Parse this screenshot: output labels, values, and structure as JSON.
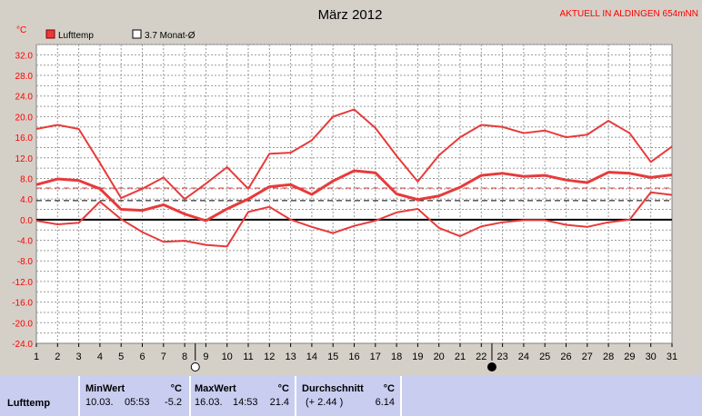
{
  "chart_data": {
    "type": "line",
    "title": "März 2012",
    "station": "AKTUELL IN ALDINGEN 654mNN",
    "unit_label": "°C",
    "legend": {
      "series_label": "Lufttemp",
      "mean_label": "3.7 Monat-Ø",
      "placement": "top-left"
    },
    "x": [
      1,
      2,
      3,
      4,
      5,
      6,
      7,
      8,
      9,
      10,
      11,
      12,
      13,
      14,
      15,
      16,
      17,
      18,
      19,
      20,
      21,
      22,
      23,
      24,
      25,
      26,
      27,
      28,
      29,
      30,
      31
    ],
    "x_ticks": [
      "1",
      "2",
      "3",
      "4",
      "5",
      "6",
      "7",
      "8",
      "9",
      "10",
      "11",
      "12",
      "13",
      "14",
      "15",
      "16",
      "17",
      "18",
      "19",
      "20",
      "21",
      "22",
      "23",
      "24",
      "25",
      "26",
      "27",
      "28",
      "29",
      "30",
      "31"
    ],
    "ylim": [
      -24,
      34
    ],
    "y_ticks": [
      "32.0",
      "28.0",
      "24.0",
      "20.0",
      "16.0",
      "12.0",
      "8.0",
      "4.0",
      "0.0",
      "-4.0",
      "-8.0",
      "-12.0",
      "-16.0",
      "-20.0",
      "-24.0"
    ],
    "grid": true,
    "series": [
      {
        "role": "max",
        "values": [
          17.6,
          18.4,
          17.6,
          11.0,
          4.2,
          6.0,
          8.2,
          4.0,
          7.0,
          10.2,
          6.0,
          12.8,
          13.0,
          15.4,
          20.0,
          21.4,
          17.8,
          12.4,
          7.4,
          12.5,
          16.0,
          18.4,
          18.0,
          16.8,
          17.3,
          16.0,
          16.5,
          19.2,
          16.8,
          11.2,
          14.2
        ]
      },
      {
        "role": "avg",
        "values": [
          6.8,
          7.9,
          7.6,
          6.0,
          2.0,
          1.8,
          2.9,
          1.1,
          -0.2,
          2.1,
          4.0,
          6.4,
          6.8,
          4.9,
          7.5,
          9.5,
          9.1,
          5.0,
          3.9,
          4.6,
          6.3,
          8.6,
          9.0,
          8.4,
          8.6,
          7.7,
          7.2,
          9.2,
          9.0,
          8.2,
          8.7
        ]
      },
      {
        "role": "min",
        "values": [
          -0.2,
          -0.9,
          -0.6,
          3.5,
          0.1,
          -2.4,
          -4.3,
          -4.1,
          -4.9,
          -5.2,
          1.5,
          2.5,
          0.0,
          -1.4,
          -2.6,
          -1.2,
          -0.2,
          1.4,
          2.1,
          -1.6,
          -3.2,
          -1.3,
          -0.5,
          -0.1,
          -0.1,
          -1.0,
          -1.4,
          -0.5,
          0.0,
          5.3,
          4.8
        ]
      }
    ],
    "monthly_mean": 3.7,
    "long_term_mean": 6.14,
    "moon_full_day": 8.5,
    "moon_new_day": 22.5
  },
  "colors": {
    "series": "#e83a3a",
    "mean_line": "#e83a3a",
    "plot_bg": "#ffffff",
    "stats_bg": "#c9cdf0",
    "title_red": "#ff0000"
  },
  "stats": {
    "row_label": "Lufttemp",
    "unit": "°C",
    "min": {
      "label": "MinWert",
      "date": "10.03.",
      "time": "05:53",
      "value": "-5.2"
    },
    "max": {
      "label": "MaxWert",
      "date": "16.03.",
      "time": "14:53",
      "value": "21.4"
    },
    "avg": {
      "label": "Durchschnitt",
      "delta": "(+ 2.44 )",
      "value": "6.14"
    }
  }
}
